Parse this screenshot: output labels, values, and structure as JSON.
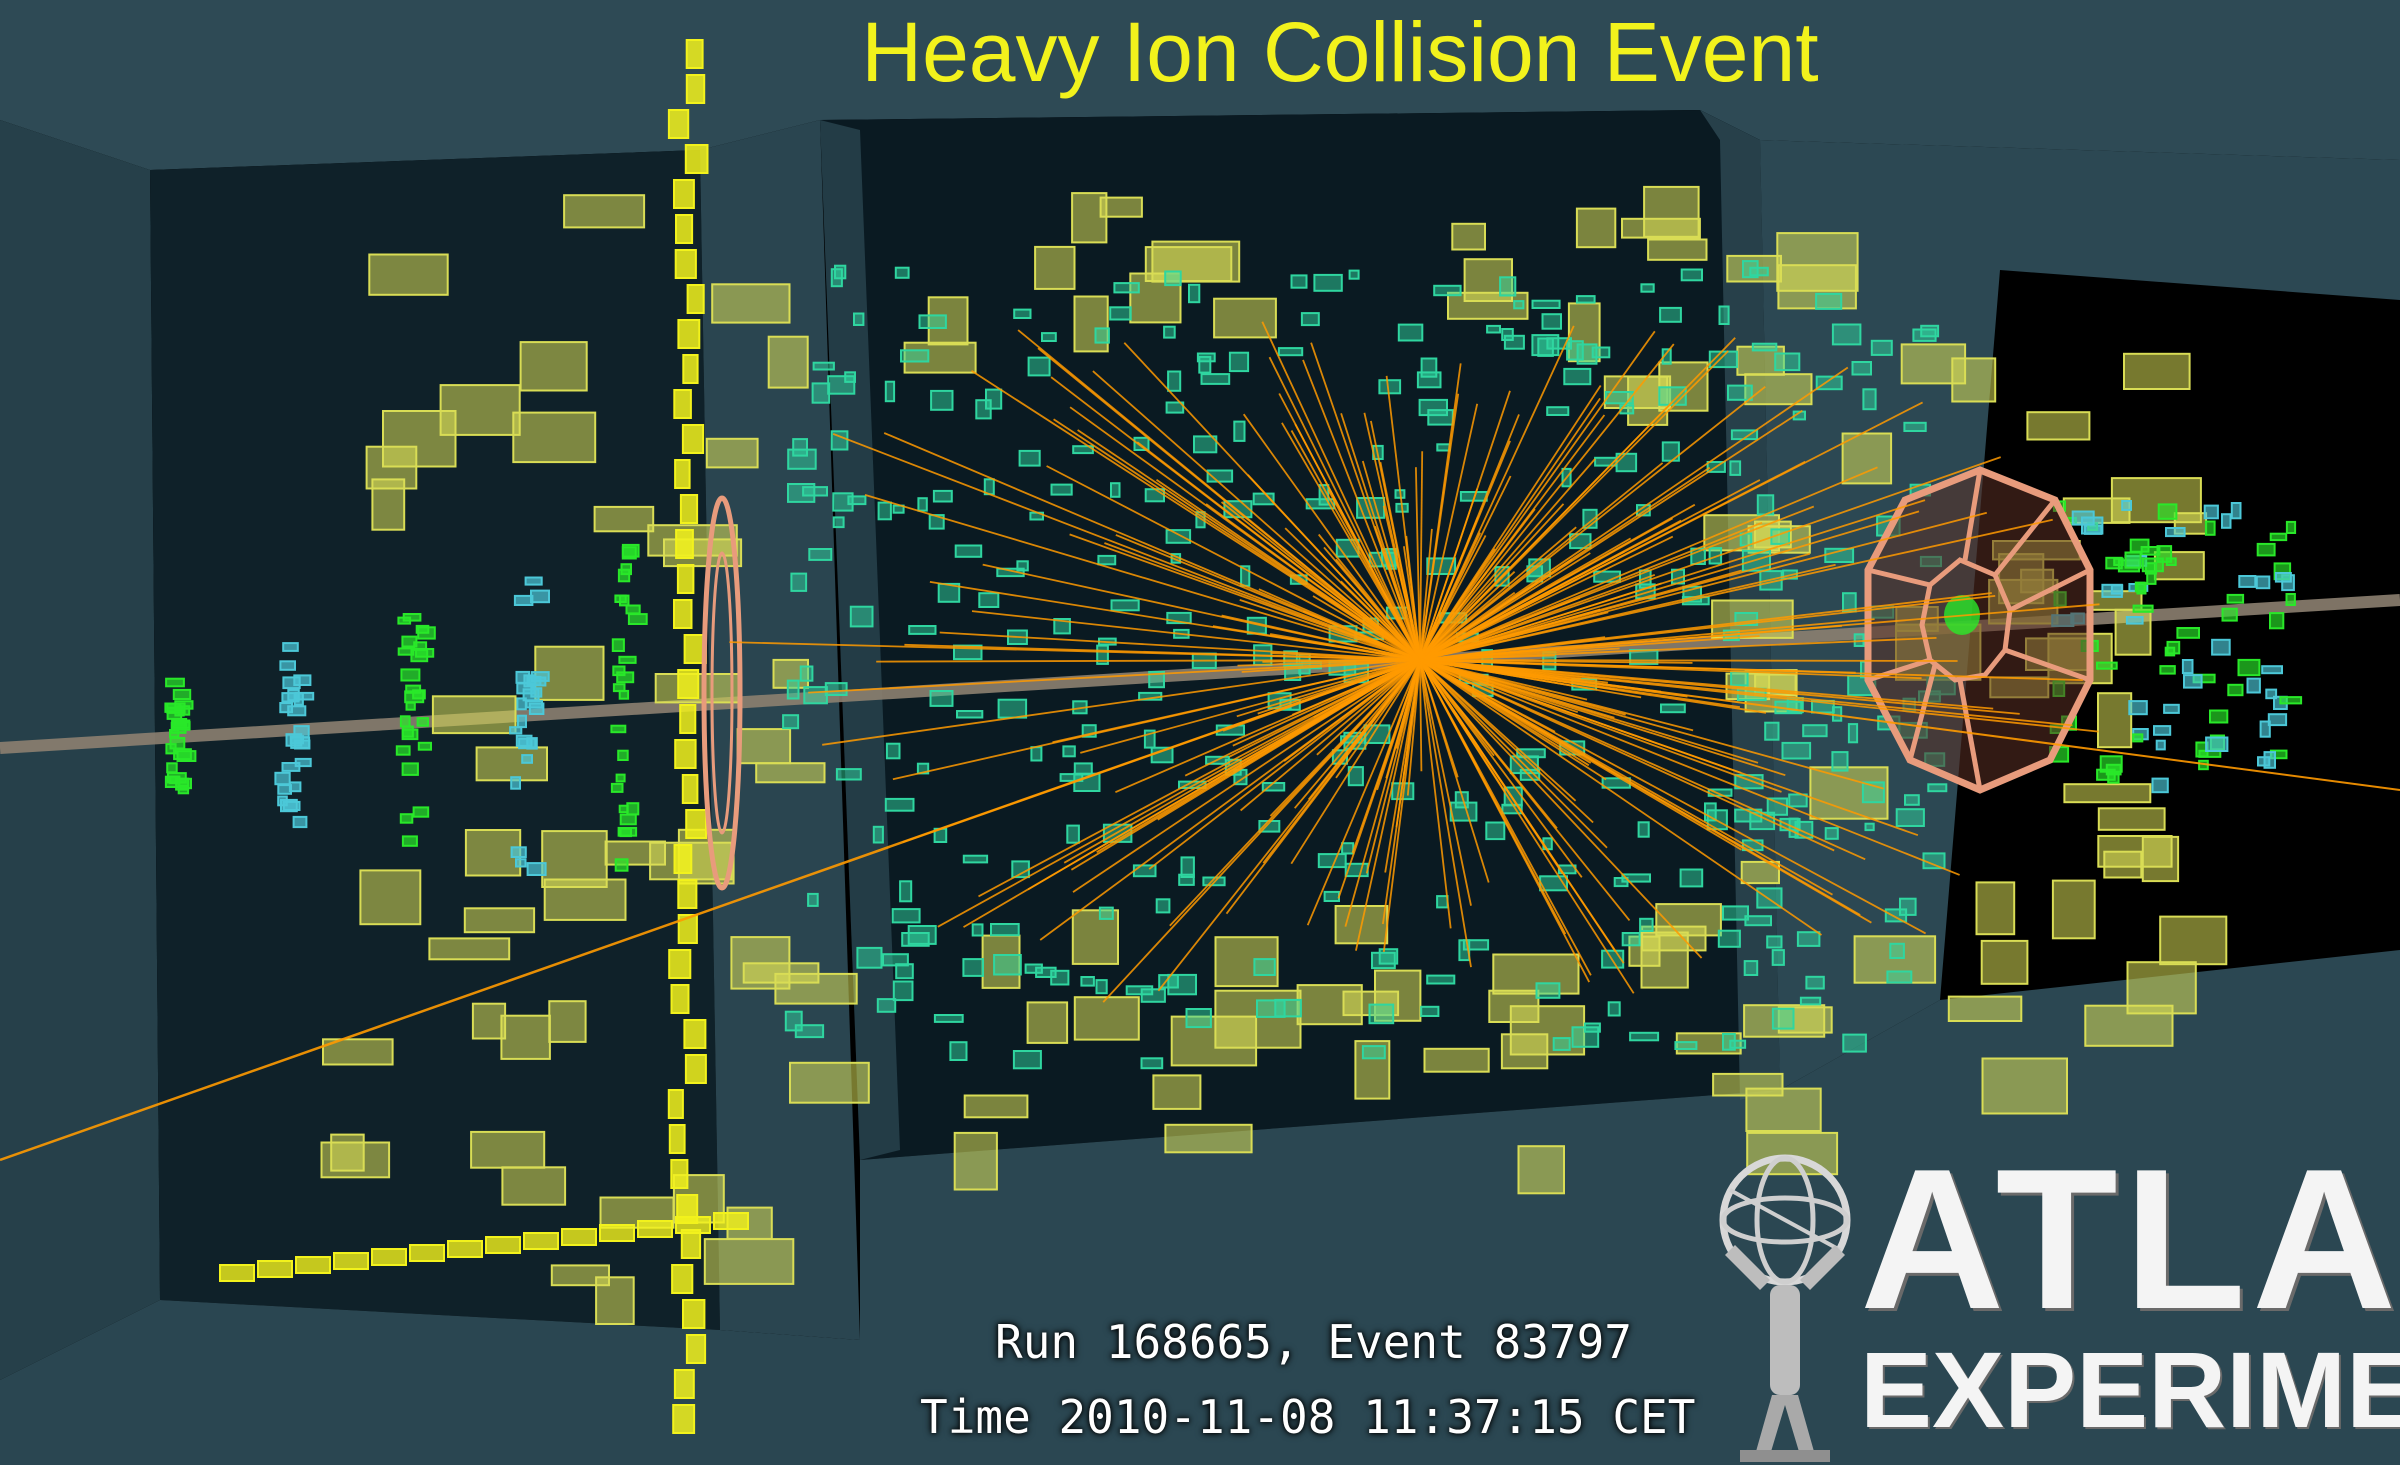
{
  "title": "Heavy Ion Collision Event",
  "event_info": {
    "run_line": "Run 168665, Event 83797",
    "time_line": "Time 2010-11-08 11:37:15 CET"
  },
  "logo": {
    "name": "ATLAS",
    "subtitle": "EXPERIMENT"
  },
  "colors": {
    "background": "#000000",
    "detector_shell": "#2e4a55",
    "calorimeter_cells": "#d9dd55",
    "inner_cells": "#2fd6a0",
    "tracks": "#ff9a00",
    "beam_pipe": "#8c8070",
    "endcap_octagon": "#e89b7c",
    "forward_cells": "#29e829",
    "forward_outline": "#4cc8d8",
    "title": "#f2f21c"
  }
}
